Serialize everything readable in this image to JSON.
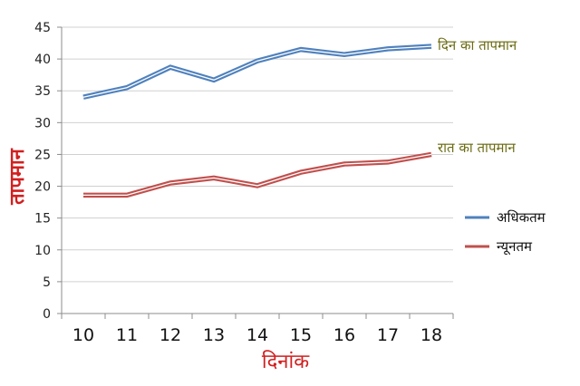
{
  "chart_data": {
    "type": "line",
    "xlabel": "दिनांक",
    "ylabel": "तापमान",
    "categories": [
      "10",
      "11",
      "12",
      "13",
      "14",
      "15",
      "16",
      "17",
      "18"
    ],
    "ylim": [
      0,
      45
    ],
    "yticks": [
      0,
      5,
      10,
      15,
      20,
      25,
      30,
      35,
      40,
      45
    ],
    "grid": true,
    "legend_position": "right",
    "series": [
      {
        "name": "अधिकतम",
        "color": "#4f81bd",
        "values": [
          34,
          35.5,
          38.7,
          36.7,
          39.7,
          41.5,
          40.7,
          41.6,
          42
        ]
      },
      {
        "name": "न्यूनतम",
        "color": "#c0504d",
        "values": [
          18.6,
          18.6,
          20.5,
          21.3,
          20.1,
          22.2,
          23.5,
          23.8,
          25
        ]
      }
    ],
    "annotations": [
      {
        "text": "दिन का तापमान",
        "series": "अधिकतम",
        "color": "#6b6b12"
      },
      {
        "text": "रात का तापमान",
        "series": "न्यूनतम",
        "color": "#6b6b12"
      }
    ]
  }
}
